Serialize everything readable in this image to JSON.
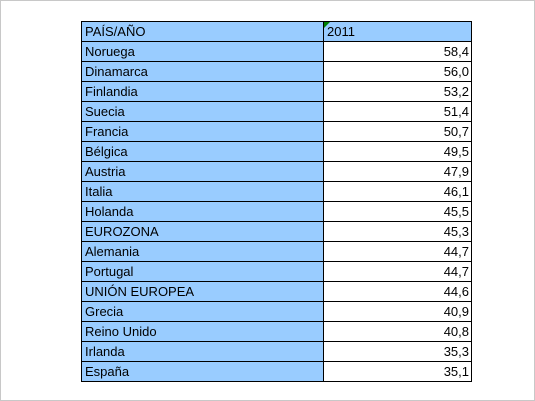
{
  "chart_data": {
    "type": "table",
    "columns": [
      "PAÍS/AÑO",
      "2011"
    ],
    "rows": [
      {
        "country": "Noruega",
        "value": "58,4"
      },
      {
        "country": "Dinamarca",
        "value": "56,0"
      },
      {
        "country": "Finlandia",
        "value": "53,2"
      },
      {
        "country": "Suecia",
        "value": "51,4"
      },
      {
        "country": "Francia",
        "value": "50,7"
      },
      {
        "country": "Bélgica",
        "value": "49,5"
      },
      {
        "country": "Austria",
        "value": "47,9"
      },
      {
        "country": "Italia",
        "value": "46,1"
      },
      {
        "country": "Holanda",
        "value": "45,5"
      },
      {
        "country": "EUROZONA",
        "value": "45,3"
      },
      {
        "country": "Alemania",
        "value": "44,7"
      },
      {
        "country": "Portugal",
        "value": "44,7"
      },
      {
        "country": "UNIÓN EUROPEA",
        "value": "44,6"
      },
      {
        "country": "Grecia",
        "value": "40,9"
      },
      {
        "country": "Reino Unido",
        "value": "40,8"
      },
      {
        "country": "Irlanda",
        "value": "35,3"
      },
      {
        "country": "España",
        "value": "35,1"
      }
    ],
    "header_fill": "#99ccff",
    "label_fill": "#99ccff",
    "value_fill": "#ffffff"
  }
}
